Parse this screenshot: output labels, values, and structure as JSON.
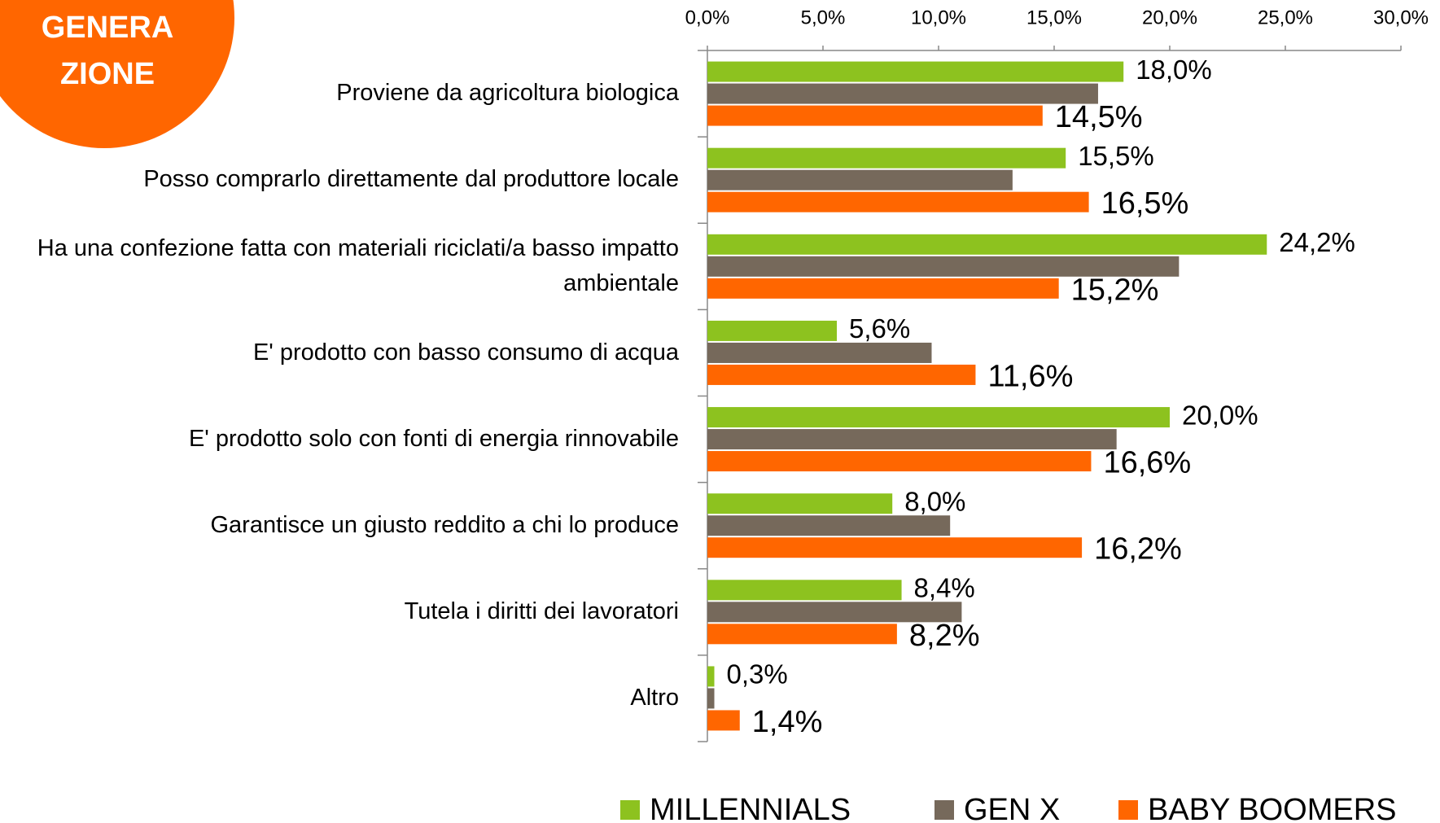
{
  "badge": {
    "lines": [
      "GENERA",
      "ZIONE"
    ]
  },
  "chart_data": {
    "type": "barh",
    "categories": [
      "Proviene da agricoltura biologica",
      "Posso comprarlo direttamente dal produttore locale",
      "Ha una confezione fatta con materiali riciclati/a basso impatto ambientale",
      "E' prodotto con basso consumo di acqua",
      "E' prodotto solo con fonti di energia rinnovabile",
      "Garantisce un giusto reddito a chi lo produce",
      "Tutela i diritti dei lavoratori",
      "Altro"
    ],
    "series": [
      {
        "name": "MILLENNIALS",
        "color": "#8dc21f",
        "values": [
          18.0,
          15.5,
          24.2,
          5.6,
          20.0,
          8.0,
          8.4,
          0.3
        ],
        "value_labels": [
          "18,0%",
          "15,5%",
          "24,2%",
          "5,6%",
          "20,0%",
          "8,0%",
          "8,4%",
          "0,3%"
        ]
      },
      {
        "name": "GEN X",
        "color": "#76695b",
        "values": [
          16.9,
          13.2,
          20.4,
          9.7,
          17.7,
          10.5,
          11.0,
          0.3
        ]
      },
      {
        "name": "BABY BOOMERS",
        "color": "#ff6600",
        "values": [
          14.5,
          16.5,
          15.2,
          11.6,
          16.6,
          16.2,
          8.2,
          1.4
        ],
        "value_labels": [
          "14,5%",
          "16,5%",
          "15,2%",
          "11,6%",
          "16,6%",
          "16,2%",
          "8,2%",
          "1,4%"
        ]
      }
    ],
    "xlim": [
      0,
      30
    ],
    "xticks": [
      {
        "value": 0,
        "label": "0,0%"
      },
      {
        "value": 5,
        "label": "5,0%"
      },
      {
        "value": 10,
        "label": "10,0%"
      },
      {
        "value": 15,
        "label": "15,0%"
      },
      {
        "value": 20,
        "label": "20,0%"
      },
      {
        "value": 25,
        "label": "25,0%"
      },
      {
        "value": 30,
        "label": "30,0%"
      }
    ],
    "legend": "bottom"
  }
}
